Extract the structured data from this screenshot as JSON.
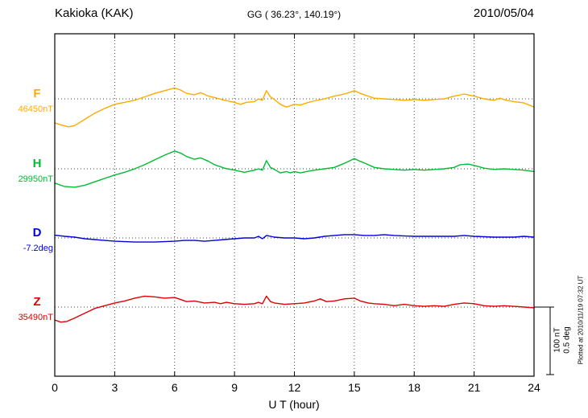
{
  "header": {
    "station": "Kakioka (KAK)",
    "coordinates": "GG ( 36.23°, 140.19°)",
    "date": "2010/05/04"
  },
  "scale_bar": {
    "nt_label": "100 nT",
    "deg_label": "0.5 deg"
  },
  "footer_note": "Plotted at 2010/11/19 07:32 UT",
  "chart_data": {
    "type": "line",
    "xlabel": "U T (hour)",
    "x_range": [
      0,
      24
    ],
    "x_ticks": [
      0,
      3,
      6,
      9,
      12,
      15,
      18,
      21,
      24
    ],
    "grid": "dotted vertical lines at 3-hour ticks; dotted horizontal baseline per component",
    "legend_position": "left margin, component letter above baseline value",
    "scale": {
      "nT_per_bar": 100,
      "deg_per_bar": 0.5
    },
    "values_are": "offset from baseline_value, in series unit",
    "series": [
      {
        "name": "F",
        "unit": "nT",
        "baseline_label": "46450nT",
        "baseline_value": 46450,
        "color": "#FFAA00",
        "points": [
          [
            0,
            -35
          ],
          [
            0.3,
            -38
          ],
          [
            0.7,
            -41
          ],
          [
            1,
            -39
          ],
          [
            1.5,
            -30
          ],
          [
            2,
            -21
          ],
          [
            2.5,
            -14
          ],
          [
            3,
            -8
          ],
          [
            3.5,
            -5
          ],
          [
            4,
            -2
          ],
          [
            4.5,
            3
          ],
          [
            5,
            8
          ],
          [
            5.5,
            12
          ],
          [
            6,
            16
          ],
          [
            6.3,
            13
          ],
          [
            6.6,
            8
          ],
          [
            7,
            6
          ],
          [
            7.3,
            9
          ],
          [
            7.7,
            4
          ],
          [
            8,
            2
          ],
          [
            8.5,
            -2
          ],
          [
            9,
            -5
          ],
          [
            9.3,
            -8
          ],
          [
            9.6,
            -5
          ],
          [
            10,
            -4
          ],
          [
            10.2,
            0
          ],
          [
            10.4,
            -2
          ],
          [
            10.6,
            12
          ],
          [
            10.8,
            3
          ],
          [
            11,
            -1
          ],
          [
            11.3,
            -8
          ],
          [
            11.6,
            -12
          ],
          [
            12,
            -8
          ],
          [
            12.3,
            -9
          ],
          [
            12.6,
            -6
          ],
          [
            13,
            -3
          ],
          [
            13.5,
            0
          ],
          [
            14,
            4
          ],
          [
            14.5,
            7
          ],
          [
            15,
            12
          ],
          [
            15.3,
            8
          ],
          [
            15.7,
            4
          ],
          [
            16,
            1
          ],
          [
            16.5,
            0
          ],
          [
            17,
            -1
          ],
          [
            17.5,
            -2
          ],
          [
            18,
            -1
          ],
          [
            18.5,
            -2
          ],
          [
            19,
            -1
          ],
          [
            19.5,
            0
          ],
          [
            20,
            4
          ],
          [
            20.5,
            7
          ],
          [
            21,
            4
          ],
          [
            21.5,
            0
          ],
          [
            22,
            -2
          ],
          [
            22.3,
            1
          ],
          [
            22.6,
            -2
          ],
          [
            23,
            -4
          ],
          [
            23.5,
            -6
          ],
          [
            24,
            -12
          ]
        ]
      },
      {
        "name": "H",
        "unit": "nT",
        "baseline_label": "29950nT",
        "baseline_value": 29950,
        "color": "#00BB33",
        "points": [
          [
            0,
            -21
          ],
          [
            0.5,
            -26
          ],
          [
            1,
            -27
          ],
          [
            1.5,
            -24
          ],
          [
            2,
            -19
          ],
          [
            2.5,
            -14
          ],
          [
            3,
            -9
          ],
          [
            3.5,
            -5
          ],
          [
            4,
            0
          ],
          [
            4.5,
            6
          ],
          [
            5,
            13
          ],
          [
            5.5,
            20
          ],
          [
            6,
            26
          ],
          [
            6.3,
            23
          ],
          [
            6.6,
            18
          ],
          [
            7,
            14
          ],
          [
            7.3,
            16
          ],
          [
            7.7,
            11
          ],
          [
            8,
            6
          ],
          [
            8.5,
            1
          ],
          [
            9,
            -2
          ],
          [
            9.5,
            -5
          ],
          [
            10,
            -2
          ],
          [
            10.2,
            0
          ],
          [
            10.4,
            -2
          ],
          [
            10.6,
            12
          ],
          [
            10.8,
            2
          ],
          [
            11,
            -1
          ],
          [
            11.3,
            -6
          ],
          [
            11.6,
            -4
          ],
          [
            11.8,
            -6
          ],
          [
            12,
            -4
          ],
          [
            12.3,
            -6
          ],
          [
            12.6,
            -4
          ],
          [
            13,
            -2
          ],
          [
            13.5,
            0
          ],
          [
            14,
            2
          ],
          [
            14.5,
            8
          ],
          [
            15,
            15
          ],
          [
            15.3,
            11
          ],
          [
            15.7,
            6
          ],
          [
            16,
            2
          ],
          [
            16.5,
            0
          ],
          [
            17,
            -1
          ],
          [
            17.5,
            -2
          ],
          [
            18,
            -1
          ],
          [
            18.5,
            -2
          ],
          [
            19,
            -1
          ],
          [
            19.5,
            0
          ],
          [
            20,
            2
          ],
          [
            20.3,
            6
          ],
          [
            20.7,
            7
          ],
          [
            21,
            5
          ],
          [
            21.5,
            1
          ],
          [
            22,
            -1
          ],
          [
            22.5,
            0
          ],
          [
            23,
            -1
          ],
          [
            23.5,
            -2
          ],
          [
            24,
            -4
          ]
        ]
      },
      {
        "name": "D",
        "unit": "deg",
        "baseline_label": "-7.2deg",
        "baseline_value": -7.2,
        "color": "#0000DD",
        "points": [
          [
            0,
            0.02
          ],
          [
            0.5,
            0.012
          ],
          [
            1,
            0.006
          ],
          [
            1.5,
            -0.006
          ],
          [
            2,
            -0.012
          ],
          [
            2.5,
            -0.018
          ],
          [
            3,
            -0.024
          ],
          [
            4,
            -0.03
          ],
          [
            5,
            -0.03
          ],
          [
            6,
            -0.024
          ],
          [
            6.5,
            -0.018
          ],
          [
            7,
            -0.018
          ],
          [
            7.5,
            -0.024
          ],
          [
            8,
            -0.018
          ],
          [
            8.5,
            -0.012
          ],
          [
            9,
            -0.006
          ],
          [
            9.5,
            0
          ],
          [
            10,
            0
          ],
          [
            10.2,
            0.012
          ],
          [
            10.4,
            -0.006
          ],
          [
            10.6,
            0.018
          ],
          [
            11,
            0.006
          ],
          [
            11.5,
            0
          ],
          [
            12,
            0
          ],
          [
            12.5,
            -0.006
          ],
          [
            13,
            0
          ],
          [
            13.5,
            0.012
          ],
          [
            14,
            0.018
          ],
          [
            14.5,
            0.024
          ],
          [
            15,
            0.024
          ],
          [
            15.5,
            0.018
          ],
          [
            16,
            0.018
          ],
          [
            16.5,
            0.024
          ],
          [
            17,
            0.018
          ],
          [
            18,
            0.012
          ],
          [
            19,
            0.012
          ],
          [
            20,
            0.012
          ],
          [
            20.5,
            0.018
          ],
          [
            21,
            0.012
          ],
          [
            22,
            0.006
          ],
          [
            23,
            0.006
          ],
          [
            23.5,
            0.012
          ],
          [
            24,
            0.006
          ]
        ]
      },
      {
        "name": "Z",
        "unit": "nT",
        "baseline_label": "35490nT",
        "baseline_value": 35490,
        "color": "#DD0000",
        "points": [
          [
            0,
            -19
          ],
          [
            0.3,
            -22
          ],
          [
            0.6,
            -21
          ],
          [
            1,
            -16
          ],
          [
            1.5,
            -9
          ],
          [
            2,
            -2
          ],
          [
            2.5,
            2
          ],
          [
            3,
            6
          ],
          [
            3.5,
            9
          ],
          [
            4,
            13
          ],
          [
            4.5,
            16
          ],
          [
            5,
            15
          ],
          [
            5.5,
            13
          ],
          [
            6,
            14
          ],
          [
            6.3,
            11
          ],
          [
            6.6,
            8
          ],
          [
            7,
            9
          ],
          [
            7.5,
            6
          ],
          [
            8,
            7
          ],
          [
            8.3,
            5
          ],
          [
            8.6,
            7
          ],
          [
            9,
            5
          ],
          [
            9.5,
            4
          ],
          [
            10,
            5
          ],
          [
            10.2,
            7
          ],
          [
            10.4,
            5
          ],
          [
            10.6,
            16
          ],
          [
            10.8,
            8
          ],
          [
            11,
            6
          ],
          [
            11.5,
            4
          ],
          [
            12,
            5
          ],
          [
            12.5,
            6
          ],
          [
            13,
            9
          ],
          [
            13.3,
            12
          ],
          [
            13.6,
            8
          ],
          [
            14,
            9
          ],
          [
            14.5,
            12
          ],
          [
            15,
            13
          ],
          [
            15.3,
            9
          ],
          [
            15.7,
            6
          ],
          [
            16,
            5
          ],
          [
            16.5,
            4
          ],
          [
            17,
            2
          ],
          [
            17.5,
            4
          ],
          [
            18,
            2
          ],
          [
            18.5,
            1
          ],
          [
            19,
            2
          ],
          [
            19.5,
            1
          ],
          [
            20,
            4
          ],
          [
            20.5,
            6
          ],
          [
            21,
            5
          ],
          [
            21.5,
            2
          ],
          [
            22,
            1
          ],
          [
            22.5,
            2
          ],
          [
            23,
            1
          ],
          [
            23.5,
            0
          ],
          [
            24,
            -1
          ]
        ]
      }
    ]
  }
}
